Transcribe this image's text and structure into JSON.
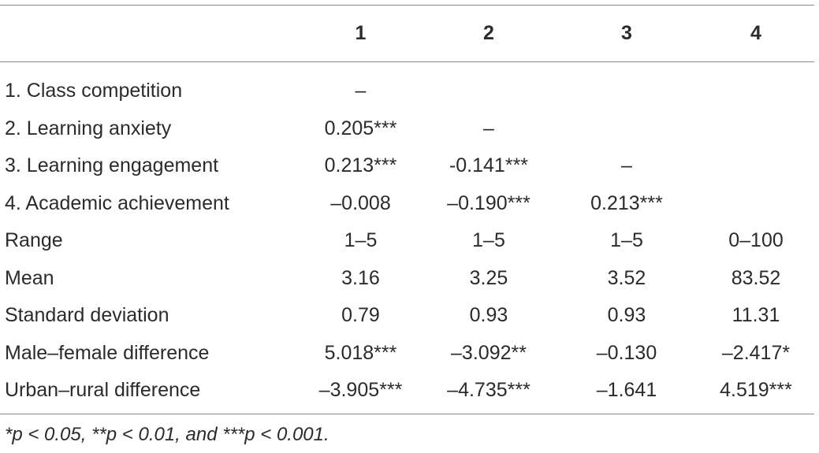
{
  "table": {
    "headers": [
      "",
      "1",
      "2",
      "3",
      "4"
    ],
    "rows": [
      {
        "label": "1. Class competition",
        "cells": [
          "–",
          "",
          "",
          ""
        ]
      },
      {
        "label": "2. Learning anxiety",
        "cells": [
          "0.205***",
          "–",
          "",
          ""
        ]
      },
      {
        "label": "3. Learning engagement",
        "cells": [
          "0.213***",
          "-0.141***",
          "–",
          ""
        ]
      },
      {
        "label": "4. Academic achievement",
        "cells": [
          "–0.008",
          "–0.190***",
          "0.213***",
          ""
        ]
      },
      {
        "label": "Range",
        "cells": [
          "1–5",
          "1–5",
          "1–5",
          "0–100"
        ]
      },
      {
        "label": "Mean",
        "cells": [
          "3.16",
          "3.25",
          "3.52",
          "83.52"
        ]
      },
      {
        "label": "Standard deviation",
        "cells": [
          "0.79",
          "0.93",
          "0.93",
          "11.31"
        ]
      },
      {
        "label": "Male–female difference",
        "cells": [
          "5.018***",
          "–3.092**",
          "–0.130",
          "–2.417*"
        ]
      },
      {
        "label": "Urban–rural difference",
        "cells": [
          "–3.905***",
          "–4.735***",
          "–1.641",
          "4.519***"
        ]
      }
    ]
  },
  "note": "*p < 0.05, **p < 0.01, and ***p < 0.001."
}
